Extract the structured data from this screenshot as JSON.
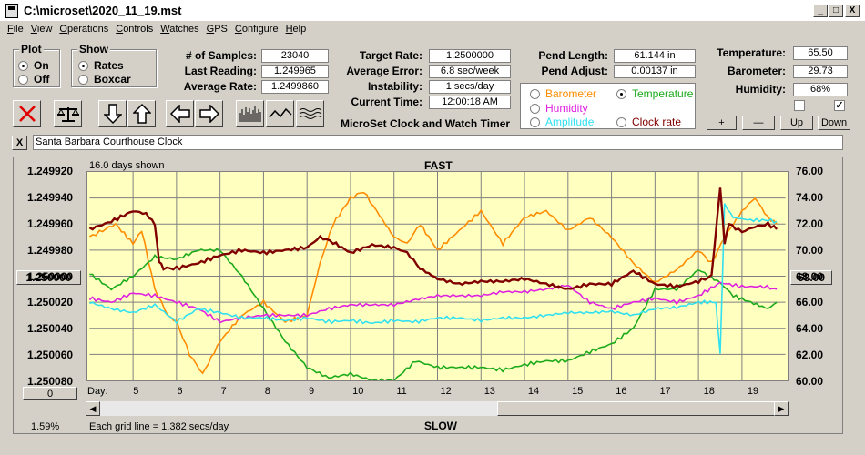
{
  "window": {
    "title": "C:\\microset\\2020_11_19.mst",
    "minimize": "_",
    "maximize": "□",
    "close": "X"
  },
  "menu": [
    "File",
    "View",
    "Operations",
    "Controls",
    "Watches",
    "GPS",
    "Configure",
    "Help"
  ],
  "plot_group": {
    "title": "Plot",
    "on": "On",
    "off": "Off",
    "selected": "On"
  },
  "show_group": {
    "title": "Show",
    "rates": "Rates",
    "boxcar": "Boxcar",
    "selected": "Rates"
  },
  "stats": {
    "samples_label": "# of Samples:",
    "samples": "23040",
    "last_label": "Last Reading:",
    "last": "1.249965",
    "avg_label": "Average Rate:",
    "avg": "1.2499860"
  },
  "rates": {
    "target_label": "Target Rate:",
    "target": "1.2500000",
    "error_label": "Average Error:",
    "error": "6.8 sec/week",
    "instab_label": "Instability:",
    "instab": "1 secs/day",
    "time_label": "Current Time:",
    "time": "12:00:18 AM"
  },
  "pend": {
    "length_label": "Pend Length:",
    "length": "61.144 in",
    "adjust_label": "Pend Adjust:",
    "adjust": "0.00137 in"
  },
  "env": {
    "temp_label": "Temperature:",
    "temp": "65.50",
    "baro_label": "Barometer:",
    "baro": "29.73",
    "hum_label": "Humidity:",
    "hum": "68%"
  },
  "series_select": {
    "barometer": "Barometer",
    "temperature": "Temperature",
    "humidity": "Humidity",
    "amplitude": "Amplitude",
    "clockrate": "Clock rate",
    "selected": "Temperature"
  },
  "env_buttons": {
    "plus": "+",
    "minus": "—",
    "up": "Up",
    "down": "Down"
  },
  "app_title": "MicroSet Clock and Watch Timer",
  "clock_name": "Santa Barbara Courthouse Clock",
  "clear_name": "X",
  "colors": {
    "barometer": "#ff8c00",
    "temperature": "#1aaa1a",
    "humidity": "#e020e0",
    "amplitude": "#30e0f0",
    "clockrate": "#800000",
    "plot_bg": "#ffffc0"
  },
  "chart": {
    "days_shown": "16.0 days shown",
    "fast": "FAST",
    "slow": "SLOW",
    "grid_note": "Each grid line = 1.382 secs/day",
    "day_label": "Day:",
    "left_button": "1.250000",
    "right_button": "68.00",
    "zero_button": "0",
    "percent": "1.59%"
  },
  "chart_data": {
    "type": "line",
    "x_label": "Day:",
    "days": [
      "5",
      "6",
      "7",
      "8",
      "9",
      "10",
      "11",
      "12",
      "13",
      "14",
      "15",
      "16",
      "17",
      "18",
      "19"
    ],
    "y_left_ticks": [
      "1.249920",
      "1.249940",
      "1.249960",
      "1.249980",
      "1.250000",
      "1.250020",
      "1.250040",
      "1.250060",
      "1.250080"
    ],
    "y_right_ticks": [
      "76.00",
      "74.00",
      "72.00",
      "70.00",
      "68.00",
      "66.00",
      "64.00",
      "62.00",
      "60.00"
    ],
    "xlim": [
      4.0,
      20.0
    ],
    "ylim_left": [
      1.24992,
      1.25008
    ],
    "ylim_right": [
      60,
      76
    ],
    "series": [
      {
        "color": "#800000",
        "axis": "left",
        "x": [
          4.0,
          4.5,
          5.0,
          5.3,
          5.5,
          5.6,
          5.7,
          6.0,
          6.5,
          7.0,
          7.5,
          8.0,
          8.5,
          9.0,
          9.3,
          9.6,
          10.0,
          10.5,
          11.0,
          11.3,
          11.6,
          12.0,
          12.5,
          13.0,
          13.5,
          14.0,
          14.5,
          15.0,
          15.5,
          16.0,
          16.5,
          17.0,
          17.5,
          18.0,
          18.3,
          18.5,
          18.6,
          18.7,
          19.0,
          19.3,
          19.6,
          19.8
        ],
        "y": [
          1.249964,
          1.249958,
          1.24995,
          1.249952,
          1.24996,
          1.249988,
          1.249994,
          1.249994,
          1.24999,
          1.249984,
          1.24998,
          1.249982,
          1.24998,
          1.249978,
          1.24997,
          1.249974,
          1.249982,
          1.249976,
          1.249978,
          1.249982,
          1.249994,
          1.250002,
          1.250006,
          1.250004,
          1.250004,
          1.250002,
          1.250006,
          1.25001,
          1.250006,
          1.250006,
          1.249996,
          1.250006,
          1.250008,
          1.250004,
          1.25,
          1.249932,
          1.249975,
          1.24996,
          1.249966,
          1.249962,
          1.24996,
          1.249964
        ]
      },
      {
        "color": "#ff8c00",
        "axis": "right",
        "x": [
          4.0,
          4.3,
          4.6,
          5.0,
          5.2,
          5.5,
          5.8,
          6.0,
          6.3,
          6.6,
          7.0,
          7.5,
          8.0,
          8.5,
          9.0,
          9.3,
          9.6,
          10.0,
          10.3,
          10.6,
          11.0,
          11.3,
          11.6,
          12.0,
          12.5,
          13.0,
          13.5,
          14.0,
          14.5,
          15.0,
          15.5,
          16.0,
          16.5,
          17.0,
          17.5,
          18.0,
          18.3,
          18.6,
          19.0,
          19.3,
          19.6,
          19.8
        ],
        "y": [
          71.0,
          71.5,
          72.0,
          70.5,
          71.5,
          67.0,
          65.0,
          64.5,
          62.0,
          60.5,
          63.0,
          65.0,
          66.0,
          64.5,
          65.0,
          69.0,
          72.0,
          74.0,
          74.5,
          73.0,
          71.0,
          70.5,
          72.0,
          70.0,
          71.5,
          73.0,
          70.5,
          72.5,
          73.0,
          71.5,
          72.5,
          71.0,
          69.0,
          67.5,
          68.5,
          70.0,
          69.0,
          71.0,
          73.0,
          74.0,
          72.5,
          72.0
        ]
      },
      {
        "color": "#1aaa1a",
        "axis": "right",
        "x": [
          4.0,
          4.5,
          5.0,
          5.5,
          6.0,
          6.5,
          7.0,
          7.5,
          8.0,
          8.5,
          9.0,
          9.5,
          10.0,
          10.5,
          11.0,
          11.5,
          12.0,
          12.5,
          13.0,
          13.5,
          14.0,
          14.5,
          15.0,
          15.5,
          16.0,
          16.5,
          17.0,
          17.5,
          18.0,
          18.5,
          18.8,
          19.2,
          19.6,
          19.8
        ],
        "y": [
          68.2,
          67.0,
          68.0,
          69.5,
          69.3,
          70.0,
          70.0,
          68.0,
          65.5,
          63.0,
          61.0,
          60.2,
          60.5,
          60.0,
          60.0,
          61.5,
          61.0,
          61.0,
          61.0,
          60.8,
          61.2,
          61.5,
          61.5,
          62.2,
          62.8,
          64.0,
          67.0,
          67.0,
          68.5,
          67.5,
          66.5,
          66.0,
          65.5,
          66.0
        ]
      },
      {
        "color": "#e020e0",
        "axis": "right",
        "x": [
          4.0,
          4.5,
          5.0,
          5.5,
          6.0,
          6.5,
          7.0,
          7.5,
          8.0,
          8.5,
          9.0,
          9.5,
          10.0,
          10.5,
          11.0,
          11.5,
          12.0,
          12.5,
          13.0,
          13.5,
          14.0,
          14.5,
          15.0,
          15.5,
          16.0,
          16.5,
          17.0,
          17.5,
          18.0,
          18.5,
          19.0,
          19.5,
          19.8
        ],
        "y": [
          66.3,
          66.0,
          66.7,
          66.5,
          66.0,
          65.5,
          64.5,
          64.8,
          65.0,
          65.0,
          65.0,
          65.5,
          65.8,
          65.8,
          65.8,
          66.2,
          66.5,
          66.5,
          66.5,
          66.8,
          66.8,
          67.0,
          67.3,
          66.0,
          65.5,
          66.0,
          66.3,
          66.0,
          66.5,
          67.5,
          67.2,
          67.2,
          67.0
        ]
      },
      {
        "color": "#30e0f0",
        "axis": "right",
        "x": [
          4.0,
          4.5,
          5.0,
          5.5,
          6.0,
          6.5,
          7.0,
          7.5,
          8.0,
          8.5,
          9.0,
          9.5,
          10.0,
          10.5,
          11.0,
          11.5,
          12.0,
          12.5,
          13.0,
          13.5,
          14.0,
          14.5,
          15.0,
          15.5,
          16.0,
          16.5,
          17.0,
          17.5,
          18.0,
          18.4,
          18.5,
          18.6,
          18.8,
          19.2,
          19.6,
          19.8
        ],
        "y": [
          66.0,
          65.5,
          65.2,
          65.8,
          64.5,
          65.5,
          65.2,
          64.8,
          64.8,
          64.6,
          64.8,
          64.5,
          64.6,
          64.4,
          64.6,
          64.5,
          64.8,
          64.8,
          64.6,
          64.8,
          64.8,
          65.0,
          65.2,
          65.2,
          65.3,
          65.0,
          65.5,
          65.6,
          66.0,
          66.0,
          62.0,
          73.5,
          72.5,
          72.3,
          72.3,
          72.2
        ]
      }
    ]
  }
}
